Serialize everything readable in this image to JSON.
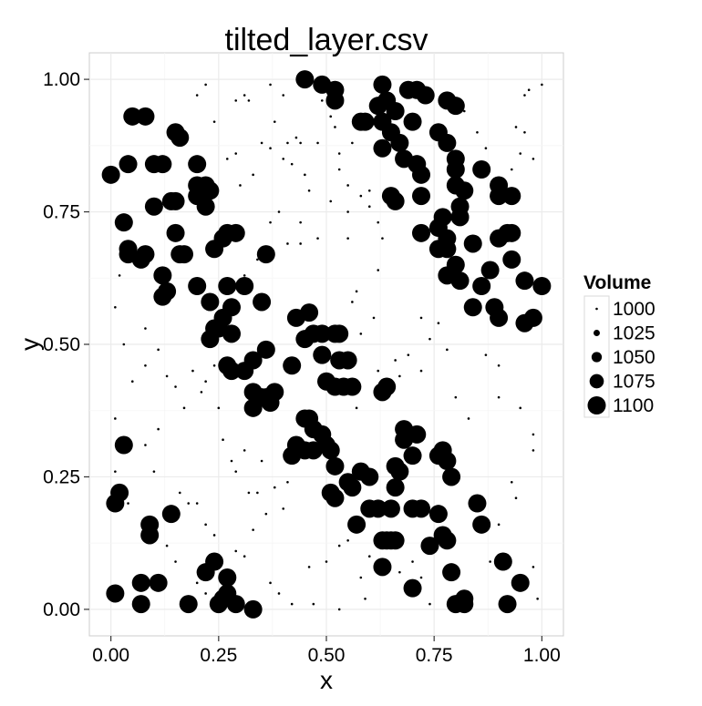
{
  "chart_data": {
    "type": "scatter",
    "title": "tilted_layer.csv",
    "xlabel": "x",
    "ylabel": "y",
    "xlim": [
      -0.05,
      1.05
    ],
    "ylim": [
      -0.05,
      1.05
    ],
    "x_ticks": [
      0.0,
      0.25,
      0.5,
      0.75,
      1.0
    ],
    "x_tick_labels": [
      "0.00",
      "0.25",
      "0.50",
      "0.75",
      "1.00"
    ],
    "y_ticks": [
      0.0,
      0.25,
      0.5,
      0.75,
      1.0
    ],
    "y_tick_labels": [
      "0.00",
      "0.25",
      "0.50",
      "0.75",
      "1.00"
    ],
    "grid": true,
    "legend": {
      "title": "Volume",
      "placement": "right",
      "entries": [
        {
          "label": "1000",
          "value": 1000
        },
        {
          "label": "1025",
          "value": 1025
        },
        {
          "label": "1050",
          "value": 1050
        },
        {
          "label": "1075",
          "value": 1075
        },
        {
          "label": "1100",
          "value": 1100
        }
      ]
    },
    "point_color": "#000000",
    "size_domain": [
      1000,
      1100
    ],
    "points": {
      "large": [
        [
          0.45,
          1.0
        ],
        [
          0.49,
          0.99
        ],
        [
          0.52,
          0.98
        ],
        [
          0.52,
          0.96
        ],
        [
          0.58,
          0.92
        ],
        [
          0.59,
          0.92
        ],
        [
          0.63,
          0.99
        ],
        [
          0.64,
          0.96
        ],
        [
          0.66,
          0.94
        ],
        [
          0.69,
          0.98
        ],
        [
          0.71,
          0.98
        ],
        [
          0.73,
          0.97
        ],
        [
          0.78,
          0.96
        ],
        [
          0.8,
          0.95
        ],
        [
          0.62,
          0.95
        ],
        [
          0.63,
          0.92
        ],
        [
          0.65,
          0.9
        ],
        [
          0.7,
          0.92
        ],
        [
          0.67,
          0.88
        ],
        [
          0.63,
          0.87
        ],
        [
          0.68,
          0.85
        ],
        [
          0.71,
          0.84
        ],
        [
          0.72,
          0.82
        ],
        [
          0.72,
          0.78
        ],
        [
          0.76,
          0.9
        ],
        [
          0.78,
          0.88
        ],
        [
          0.8,
          0.85
        ],
        [
          0.8,
          0.83
        ],
        [
          0.8,
          0.8
        ],
        [
          0.82,
          0.79
        ],
        [
          0.81,
          0.76
        ],
        [
          0.81,
          0.74
        ],
        [
          0.77,
          0.74
        ],
        [
          0.76,
          0.72
        ],
        [
          0.72,
          0.71
        ],
        [
          0.76,
          0.68
        ],
        [
          0.78,
          0.7
        ],
        [
          0.78,
          0.68
        ],
        [
          0.8,
          0.65
        ],
        [
          0.78,
          0.63
        ],
        [
          0.81,
          0.62
        ],
        [
          0.84,
          0.69
        ],
        [
          0.86,
          0.83
        ],
        [
          0.9,
          0.8
        ],
        [
          0.9,
          0.78
        ],
        [
          0.93,
          0.78
        ],
        [
          0.92,
          0.71
        ],
        [
          0.93,
          0.71
        ],
        [
          0.9,
          0.7
        ],
        [
          0.93,
          0.66
        ],
        [
          0.88,
          0.64
        ],
        [
          0.86,
          0.61
        ],
        [
          0.96,
          0.62
        ],
        [
          1.0,
          0.61
        ],
        [
          0.89,
          0.57
        ],
        [
          0.84,
          0.57
        ],
        [
          0.9,
          0.55
        ],
        [
          0.96,
          0.54
        ],
        [
          0.98,
          0.55
        ],
        [
          0.65,
          0.78
        ],
        [
          0.66,
          0.77
        ],
        [
          0.0,
          0.82
        ],
        [
          0.05,
          0.93
        ],
        [
          0.08,
          0.93
        ],
        [
          0.04,
          0.84
        ],
        [
          0.1,
          0.84
        ],
        [
          0.12,
          0.84
        ],
        [
          0.15,
          0.9
        ],
        [
          0.16,
          0.89
        ],
        [
          0.2,
          0.84
        ],
        [
          0.2,
          0.8
        ],
        [
          0.22,
          0.8
        ],
        [
          0.23,
          0.79
        ],
        [
          0.2,
          0.78
        ],
        [
          0.22,
          0.76
        ],
        [
          0.15,
          0.77
        ],
        [
          0.14,
          0.77
        ],
        [
          0.1,
          0.76
        ],
        [
          0.03,
          0.73
        ],
        [
          0.04,
          0.68
        ],
        [
          0.04,
          0.67
        ],
        [
          0.08,
          0.67
        ],
        [
          0.07,
          0.66
        ],
        [
          0.12,
          0.63
        ],
        [
          0.12,
          0.59
        ],
        [
          0.13,
          0.6
        ],
        [
          0.15,
          0.71
        ],
        [
          0.16,
          0.67
        ],
        [
          0.17,
          0.67
        ],
        [
          0.24,
          0.68
        ],
        [
          0.26,
          0.7
        ],
        [
          0.27,
          0.71
        ],
        [
          0.29,
          0.71
        ],
        [
          0.36,
          0.67
        ],
        [
          0.27,
          0.61
        ],
        [
          0.31,
          0.61
        ],
        [
          0.35,
          0.58
        ],
        [
          0.23,
          0.58
        ],
        [
          0.2,
          0.61
        ],
        [
          0.28,
          0.57
        ],
        [
          0.26,
          0.55
        ],
        [
          0.25,
          0.53
        ],
        [
          0.24,
          0.53
        ],
        [
          0.28,
          0.52
        ],
        [
          0.23,
          0.51
        ],
        [
          0.27,
          0.46
        ],
        [
          0.28,
          0.45
        ],
        [
          0.31,
          0.45
        ],
        [
          0.33,
          0.47
        ],
        [
          0.36,
          0.49
        ],
        [
          0.42,
          0.46
        ],
        [
          0.43,
          0.55
        ],
        [
          0.45,
          0.51
        ],
        [
          0.46,
          0.56
        ],
        [
          0.47,
          0.52
        ],
        [
          0.49,
          0.52
        ],
        [
          0.49,
          0.48
        ],
        [
          0.52,
          0.52
        ],
        [
          0.53,
          0.52
        ],
        [
          0.53,
          0.47
        ],
        [
          0.55,
          0.47
        ],
        [
          0.54,
          0.42
        ],
        [
          0.5,
          0.43
        ],
        [
          0.52,
          0.42
        ],
        [
          0.56,
          0.42
        ],
        [
          0.33,
          0.41
        ],
        [
          0.33,
          0.38
        ],
        [
          0.35,
          0.4
        ],
        [
          0.37,
          0.39
        ],
        [
          0.38,
          0.41
        ],
        [
          0.36,
          0.4
        ],
        [
          0.45,
          0.36
        ],
        [
          0.46,
          0.36
        ],
        [
          0.47,
          0.34
        ],
        [
          0.45,
          0.3
        ],
        [
          0.43,
          0.31
        ],
        [
          0.42,
          0.29
        ],
        [
          0.47,
          0.3
        ],
        [
          0.49,
          0.33
        ],
        [
          0.5,
          0.31
        ],
        [
          0.51,
          0.3
        ],
        [
          0.52,
          0.27
        ],
        [
          0.51,
          0.22
        ],
        [
          0.52,
          0.21
        ],
        [
          0.56,
          0.23
        ],
        [
          0.58,
          0.26
        ],
        [
          0.6,
          0.25
        ],
        [
          0.6,
          0.19
        ],
        [
          0.62,
          0.19
        ],
        [
          0.65,
          0.19
        ],
        [
          0.63,
          0.41
        ],
        [
          0.64,
          0.42
        ],
        [
          0.68,
          0.34
        ],
        [
          0.68,
          0.32
        ],
        [
          0.71,
          0.33
        ],
        [
          0.7,
          0.29
        ],
        [
          0.66,
          0.27
        ],
        [
          0.67,
          0.26
        ],
        [
          0.66,
          0.23
        ],
        [
          0.7,
          0.19
        ],
        [
          0.72,
          0.19
        ],
        [
          0.76,
          0.18
        ],
        [
          0.78,
          0.28
        ],
        [
          0.76,
          0.29
        ],
        [
          0.77,
          0.3
        ],
        [
          0.79,
          0.25
        ],
        [
          0.85,
          0.2
        ],
        [
          0.74,
          0.12
        ],
        [
          0.77,
          0.14
        ],
        [
          0.78,
          0.13
        ],
        [
          0.79,
          0.07
        ],
        [
          0.8,
          0.01
        ],
        [
          0.82,
          0.01
        ],
        [
          0.82,
          0.02
        ],
        [
          0.86,
          0.16
        ],
        [
          0.91,
          0.09
        ],
        [
          0.92,
          0.01
        ],
        [
          0.95,
          0.05
        ],
        [
          0.55,
          0.24
        ],
        [
          0.57,
          0.16
        ],
        [
          0.63,
          0.08
        ],
        [
          0.64,
          0.13
        ],
        [
          0.65,
          0.13
        ],
        [
          0.66,
          0.13
        ],
        [
          0.7,
          0.04
        ],
        [
          0.63,
          0.13
        ],
        [
          0.01,
          0.2
        ],
        [
          0.02,
          0.22
        ],
        [
          0.03,
          0.31
        ],
        [
          0.01,
          0.03
        ],
        [
          0.07,
          0.05
        ],
        [
          0.07,
          0.01
        ],
        [
          0.09,
          0.16
        ],
        [
          0.09,
          0.14
        ],
        [
          0.11,
          0.05
        ],
        [
          0.14,
          0.18
        ],
        [
          0.18,
          0.01
        ],
        [
          0.22,
          0.07
        ],
        [
          0.24,
          0.09
        ],
        [
          0.25,
          0.01
        ],
        [
          0.26,
          0.02
        ],
        [
          0.27,
          0.03
        ],
        [
          0.27,
          0.06
        ],
        [
          0.29,
          0.01
        ],
        [
          0.33,
          0.0
        ]
      ],
      "small": [
        [
          0.2,
          0.97
        ],
        [
          0.22,
          0.99
        ],
        [
          0.29,
          0.96
        ],
        [
          0.31,
          0.97
        ],
        [
          0.32,
          0.96
        ],
        [
          0.37,
          0.99
        ],
        [
          0.4,
          0.97
        ],
        [
          0.38,
          0.92
        ],
        [
          0.41,
          0.88
        ],
        [
          0.43,
          0.89
        ],
        [
          0.44,
          0.88
        ],
        [
          0.48,
          0.88
        ],
        [
          0.53,
          0.86
        ],
        [
          0.56,
          0.88
        ],
        [
          0.49,
          0.96
        ],
        [
          0.51,
          0.93
        ],
        [
          0.52,
          0.91
        ],
        [
          0.24,
          0.92
        ],
        [
          0.27,
          0.85
        ],
        [
          0.29,
          0.86
        ],
        [
          0.3,
          0.8
        ],
        [
          0.33,
          0.82
        ],
        [
          0.35,
          0.88
        ],
        [
          0.37,
          0.87
        ],
        [
          0.4,
          0.85
        ],
        [
          0.42,
          0.84
        ],
        [
          0.45,
          0.82
        ],
        [
          0.46,
          0.79
        ],
        [
          0.53,
          0.83
        ],
        [
          0.55,
          0.8
        ],
        [
          0.51,
          0.77
        ],
        [
          0.55,
          0.75
        ],
        [
          0.58,
          0.78
        ],
        [
          0.6,
          0.79
        ],
        [
          0.6,
          0.76
        ],
        [
          0.62,
          0.73
        ],
        [
          0.63,
          0.7
        ],
        [
          0.55,
          0.7
        ],
        [
          0.48,
          0.7
        ],
        [
          0.44,
          0.69
        ],
        [
          0.41,
          0.69
        ],
        [
          0.34,
          0.66
        ],
        [
          0.31,
          0.63
        ],
        [
          0.37,
          0.73
        ],
        [
          0.39,
          0.75
        ],
        [
          0.44,
          0.73
        ],
        [
          0.62,
          0.64
        ],
        [
          0.57,
          0.6
        ],
        [
          0.56,
          0.58
        ],
        [
          0.61,
          0.55
        ],
        [
          0.58,
          0.52
        ],
        [
          0.62,
          0.45
        ],
        [
          0.57,
          0.38
        ],
        [
          0.65,
          0.42
        ],
        [
          0.67,
          0.44
        ],
        [
          0.66,
          0.47
        ],
        [
          0.69,
          0.48
        ],
        [
          0.72,
          0.45
        ],
        [
          0.74,
          0.51
        ],
        [
          0.72,
          0.55
        ],
        [
          0.76,
          0.54
        ],
        [
          0.78,
          0.49
        ],
        [
          0.8,
          0.4
        ],
        [
          0.83,
          0.36
        ],
        [
          0.87,
          0.48
        ],
        [
          0.9,
          0.4
        ],
        [
          0.9,
          0.46
        ],
        [
          0.95,
          0.38
        ],
        [
          0.98,
          0.33
        ],
        [
          0.98,
          0.3
        ],
        [
          0.93,
          0.24
        ],
        [
          0.94,
          0.21
        ],
        [
          0.9,
          0.16
        ],
        [
          0.88,
          0.09
        ],
        [
          0.98,
          0.08
        ],
        [
          0.99,
          0.02
        ],
        [
          0.96,
          0.9
        ],
        [
          0.94,
          0.91
        ],
        [
          0.96,
          0.97
        ],
        [
          0.97,
          0.98
        ],
        [
          1.0,
          0.99
        ],
        [
          0.95,
          0.86
        ],
        [
          0.98,
          0.85
        ],
        [
          0.93,
          0.83
        ],
        [
          0.91,
          0.81
        ],
        [
          0.87,
          0.87
        ],
        [
          0.85,
          0.9
        ],
        [
          0.82,
          0.94
        ],
        [
          0.01,
          0.57
        ],
        [
          0.02,
          0.63
        ],
        [
          0.03,
          0.5
        ],
        [
          0.05,
          0.43
        ],
        [
          0.08,
          0.46
        ],
        [
          0.08,
          0.53
        ],
        [
          0.11,
          0.49
        ],
        [
          0.13,
          0.44
        ],
        [
          0.15,
          0.42
        ],
        [
          0.17,
          0.38
        ],
        [
          0.19,
          0.45
        ],
        [
          0.21,
          0.41
        ],
        [
          0.22,
          0.43
        ],
        [
          0.24,
          0.46
        ],
        [
          0.25,
          0.38
        ],
        [
          0.26,
          0.32
        ],
        [
          0.28,
          0.28
        ],
        [
          0.29,
          0.26
        ],
        [
          0.31,
          0.3
        ],
        [
          0.32,
          0.22
        ],
        [
          0.34,
          0.22
        ],
        [
          0.35,
          0.28
        ],
        [
          0.38,
          0.23
        ],
        [
          0.4,
          0.19
        ],
        [
          0.41,
          0.24
        ],
        [
          0.36,
          0.18
        ],
        [
          0.33,
          0.15
        ],
        [
          0.31,
          0.1
        ],
        [
          0.29,
          0.11
        ],
        [
          0.22,
          0.16
        ],
        [
          0.24,
          0.14
        ],
        [
          0.18,
          0.2
        ],
        [
          0.2,
          0.2
        ],
        [
          0.16,
          0.22
        ],
        [
          0.1,
          0.26
        ],
        [
          0.11,
          0.34
        ],
        [
          0.08,
          0.31
        ],
        [
          0.01,
          0.36
        ],
        [
          0.01,
          0.26
        ],
        [
          0.04,
          0.2
        ],
        [
          0.13,
          0.12
        ],
        [
          0.15,
          0.09
        ],
        [
          0.2,
          0.05
        ],
        [
          0.22,
          0.03
        ],
        [
          0.37,
          0.05
        ],
        [
          0.39,
          0.03
        ],
        [
          0.42,
          0.01
        ],
        [
          0.47,
          0.01
        ],
        [
          0.53,
          0.0
        ],
        [
          0.46,
          0.08
        ],
        [
          0.5,
          0.09
        ],
        [
          0.53,
          0.12
        ],
        [
          0.55,
          0.13
        ],
        [
          0.58,
          0.06
        ],
        [
          0.6,
          0.1
        ],
        [
          0.59,
          0.02
        ],
        [
          0.67,
          0.07
        ],
        [
          0.7,
          0.09
        ],
        [
          0.72,
          0.06
        ],
        [
          0.74,
          0.01
        ]
      ]
    }
  }
}
